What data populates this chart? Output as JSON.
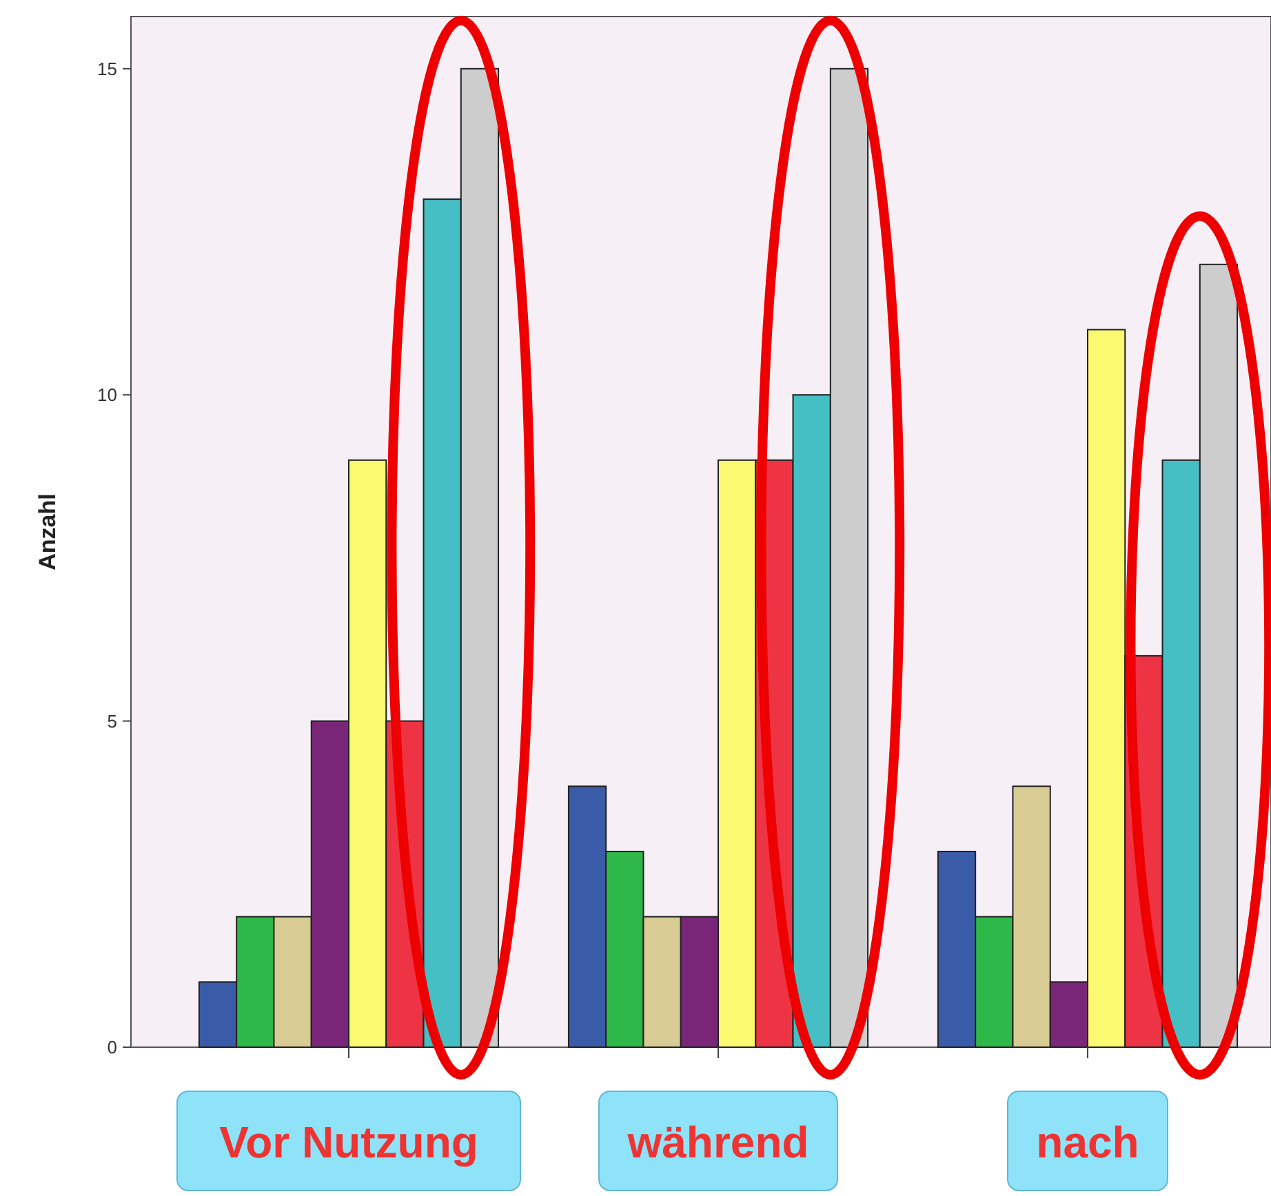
{
  "chart_data": {
    "type": "bar",
    "ylabel": "Anzahl",
    "categories": [
      "Vor Nutzung",
      "während",
      "nach"
    ],
    "series": [
      {
        "color": "#3a5ba8",
        "values": [
          1,
          4,
          3
        ]
      },
      {
        "color": "#2eb84a",
        "values": [
          2,
          3,
          2
        ]
      },
      {
        "color": "#d8cc94",
        "values": [
          2,
          2,
          4
        ]
      },
      {
        "color": "#7a2678",
        "values": [
          5,
          2,
          1
        ]
      },
      {
        "color": "#fbf970",
        "values": [
          9,
          9,
          11
        ]
      },
      {
        "color": "#ee3444",
        "values": [
          5,
          9,
          6
        ]
      },
      {
        "color": "#45bfc3",
        "values": [
          13,
          10,
          9
        ]
      },
      {
        "color": "#cdcdcd",
        "values": [
          15,
          15,
          12
        ]
      }
    ],
    "ylim": [
      0,
      15.8
    ],
    "yticks": [
      0,
      5,
      10,
      15
    ],
    "grid": false
  }
}
